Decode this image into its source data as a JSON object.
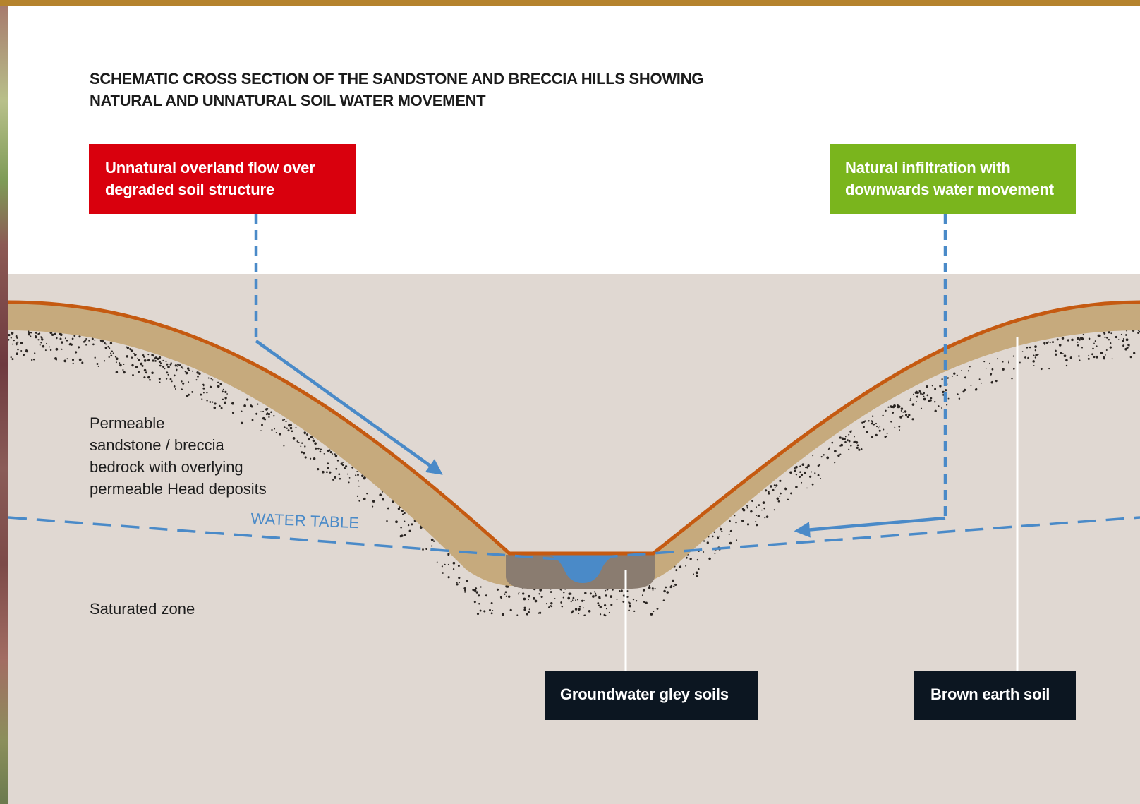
{
  "title": {
    "line1": "SCHEMATIC CROSS SECTION OF THE SANDSTONE AND BRECCIA HILLS SHOWING",
    "line2": "NATURAL AND UNNATURAL SOIL WATER MOVEMENT"
  },
  "labels": {
    "unnatural": {
      "line1": "Unnatural overland flow over",
      "line2": "degraded soil structure",
      "color": "#d9000d"
    },
    "natural": {
      "line1": "Natural infiltration with",
      "line2": "downwards water movement",
      "color": "#7ab51d"
    },
    "bedrock": {
      "line1": "Permeable",
      "line2": "sandstone / breccia",
      "line3": "bedrock with overlying",
      "line4": "permeable Head deposits"
    },
    "water_table": "WATER TABLE",
    "saturated_zone": "Saturated zone",
    "gley_soils": "Groundwater gley soils",
    "brown_earth": "Brown earth soil"
  },
  "colors": {
    "top_bar": "#b5832d",
    "bedrock": "#e0d8d2",
    "soil": "#c6aa7d",
    "surface_line": "#c55a11",
    "water": "#4a8ac8",
    "gley": "#8a7c70",
    "dark_label": "#0c1621"
  }
}
